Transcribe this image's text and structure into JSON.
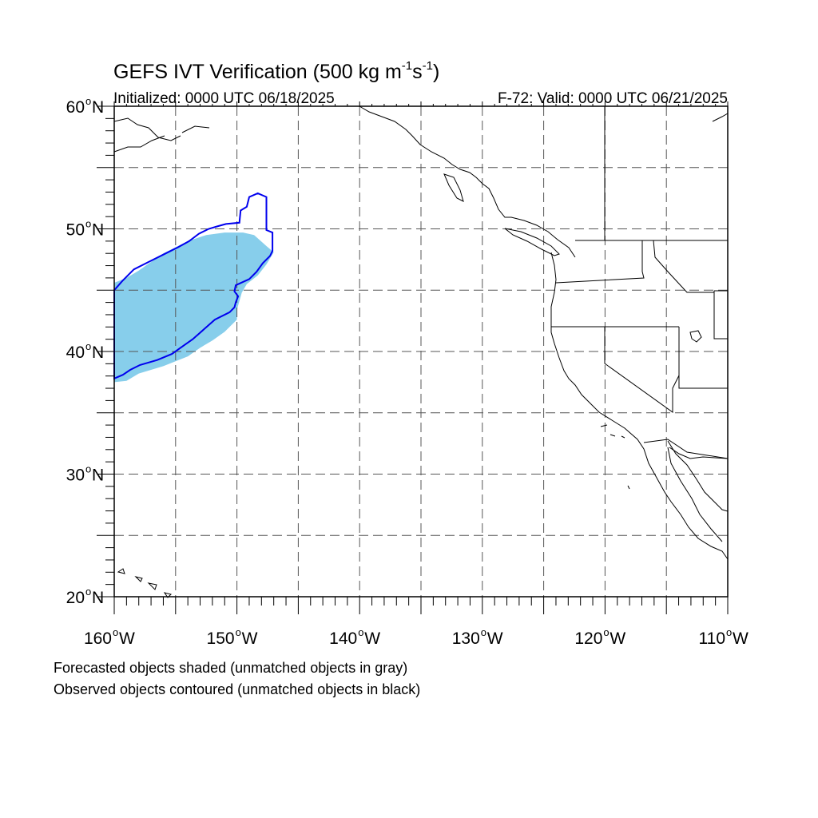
{
  "title": {
    "prefix": "GEFS IVT Verification (500 kg m",
    "exp1": "-1",
    "mid": "s",
    "exp2": "-1",
    "suffix": ")"
  },
  "initialized": "Initialized: 0000 UTC 06/18/2025",
  "valid": "F-72: Valid: 0000 UTC 06/21/2025",
  "axes": {
    "lon_range": [
      -160,
      -110
    ],
    "lat_range": [
      20,
      60
    ],
    "lat_labels": [
      {
        "value": 60,
        "label": "60"
      },
      {
        "value": 50,
        "label": "50"
      },
      {
        "value": 40,
        "label": "40"
      },
      {
        "value": 30,
        "label": "30"
      },
      {
        "value": 20,
        "label": "20"
      }
    ],
    "lon_labels": [
      {
        "value": -160,
        "label": "160"
      },
      {
        "value": -150,
        "label": "150"
      },
      {
        "value": -140,
        "label": "140"
      },
      {
        "value": -130,
        "label": "130"
      },
      {
        "value": -120,
        "label": "120"
      },
      {
        "value": -110,
        "label": "110"
      }
    ],
    "lat_suffix": "N",
    "lon_suffix": "W",
    "degree": "o",
    "grid_lons": [
      -155,
      -150,
      -145,
      -140,
      -135,
      -130,
      -125,
      -120,
      -115
    ],
    "grid_lats": [
      25,
      30,
      35,
      40,
      45,
      50,
      55
    ]
  },
  "colors": {
    "forecast_fill": "#87ceeb",
    "observed_contour": "#0000ee",
    "coast": "#000000",
    "grid": "#555555"
  },
  "forecast_object": {
    "label": "forecast",
    "polygon": [
      [
        -160,
        37.5
      ],
      [
        -159,
        37.6
      ],
      [
        -158,
        38.2
      ],
      [
        -156,
        38.8
      ],
      [
        -154,
        39.6
      ],
      [
        -153,
        40.3
      ],
      [
        -152,
        40.9
      ],
      [
        -151,
        41.6
      ],
      [
        -150,
        42.6
      ],
      [
        -150,
        43.4
      ],
      [
        -149.6,
        44.8
      ],
      [
        -149.2,
        45.5
      ],
      [
        -148.3,
        46.2
      ],
      [
        -147.6,
        47.1
      ],
      [
        -147.0,
        48.1
      ],
      [
        -147.6,
        48.6
      ],
      [
        -148.6,
        49.5
      ],
      [
        -149.5,
        49.7
      ],
      [
        -151,
        49.7
      ],
      [
        -152.5,
        49.5
      ],
      [
        -154,
        49.0
      ],
      [
        -155,
        48.5
      ],
      [
        -156,
        48.0
      ],
      [
        -157,
        47.3
      ],
      [
        -158,
        46.6
      ],
      [
        -159,
        46.0
      ],
      [
        -160,
        45.6
      ]
    ]
  },
  "observed_object": {
    "label": "observed",
    "polygon": [
      [
        -160,
        37.8
      ],
      [
        -159.3,
        38.1
      ],
      [
        -158.7,
        38.5
      ],
      [
        -157.9,
        38.9
      ],
      [
        -156.5,
        39.3
      ],
      [
        -155.3,
        39.8
      ],
      [
        -154.6,
        40.3
      ],
      [
        -153.6,
        41.0
      ],
      [
        -152.7,
        41.8
      ],
      [
        -151.8,
        42.6
      ],
      [
        -150.6,
        43.2
      ],
      [
        -150.2,
        43.6
      ],
      [
        -150.1,
        44.0
      ],
      [
        -149.9,
        44.5
      ],
      [
        -150.2,
        44.9
      ],
      [
        -150.1,
        45.4
      ],
      [
        -149.0,
        45.9
      ],
      [
        -148.4,
        46.5
      ],
      [
        -147.9,
        47.2
      ],
      [
        -147.3,
        47.8
      ],
      [
        -147.1,
        48.2
      ],
      [
        -147.1,
        49.7
      ],
      [
        -147.6,
        49.9
      ],
      [
        -147.6,
        52.6
      ],
      [
        -148.3,
        52.9
      ],
      [
        -149.0,
        52.6
      ],
      [
        -149.2,
        51.8
      ],
      [
        -149.7,
        51.5
      ],
      [
        -149.8,
        50.5
      ],
      [
        -150.9,
        50.4
      ],
      [
        -151.6,
        50.2
      ],
      [
        -152.3,
        50.0
      ],
      [
        -153.1,
        49.6
      ],
      [
        -153.9,
        49.0
      ],
      [
        -154.8,
        48.5
      ],
      [
        -155.8,
        48.0
      ],
      [
        -157.0,
        47.4
      ],
      [
        -158.4,
        46.7
      ],
      [
        -159.3,
        45.8
      ],
      [
        -160,
        45.0
      ]
    ]
  },
  "notes": [
    "Forecasted objects shaded (unmatched objects in gray)",
    "Observed objects contoured (unmatched objects in black)"
  ]
}
